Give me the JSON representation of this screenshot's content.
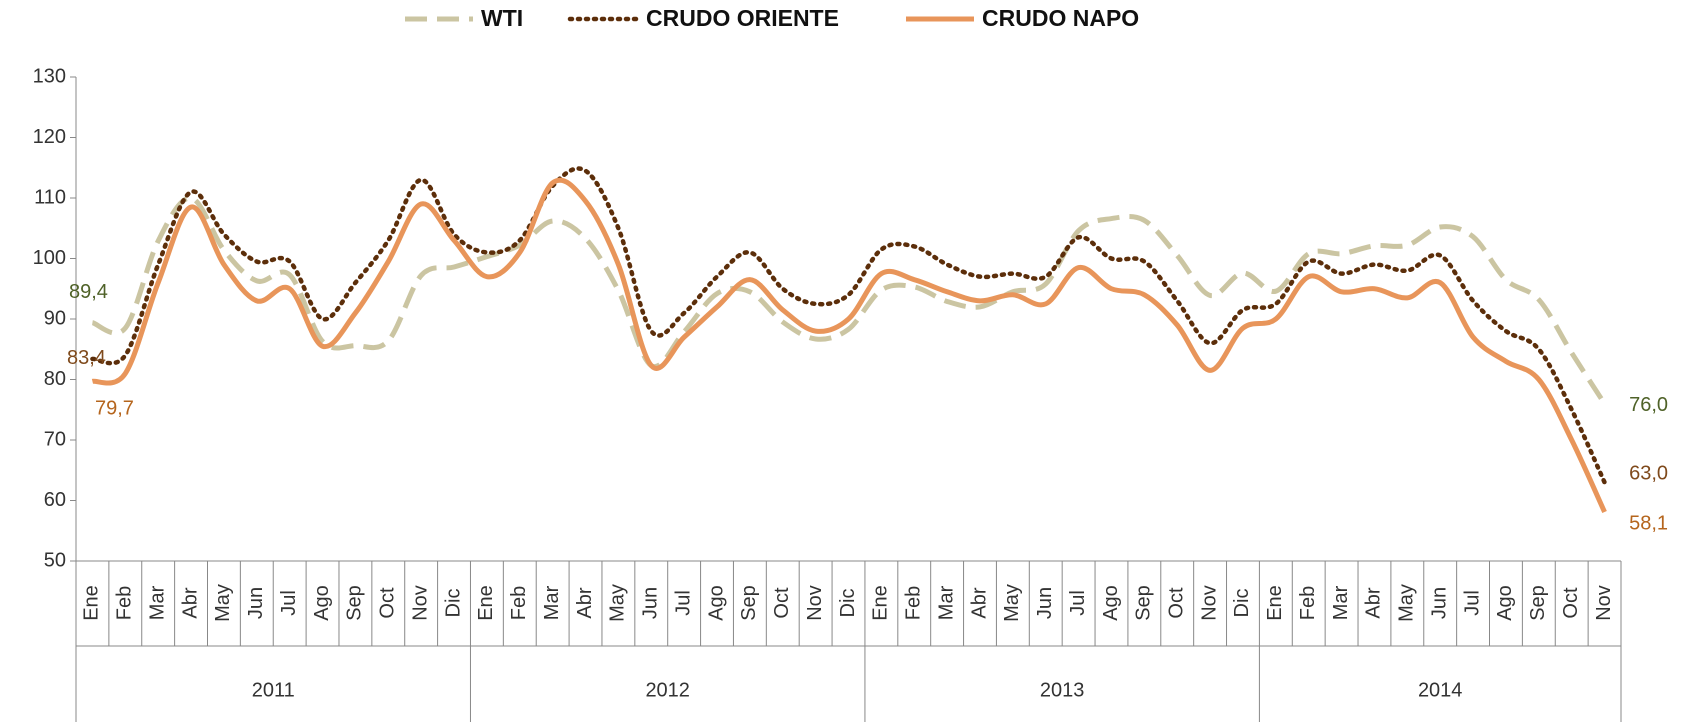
{
  "chart_data": {
    "type": "line",
    "groups": [
      {
        "label": "2011",
        "categories": [
          "Ene",
          "Feb",
          "Mar",
          "Abr",
          "May",
          "Jun",
          "Jul",
          "Ago",
          "Sep",
          "Oct",
          "Nov",
          "Dic"
        ]
      },
      {
        "label": "2012",
        "categories": [
          "Ene",
          "Feb",
          "Mar",
          "Abr",
          "May",
          "Jun",
          "Jul",
          "Ago",
          "Sep",
          "Oct",
          "Nov",
          "Dic"
        ]
      },
      {
        "label": "2013",
        "categories": [
          "Ene",
          "Feb",
          "Mar",
          "Abr",
          "May",
          "Jun",
          "Jul",
          "Ago",
          "Sep",
          "Oct",
          "Nov",
          "Dic"
        ]
      },
      {
        "label": "2014",
        "categories": [
          "Ene",
          "Feb",
          "Mar",
          "Abr",
          "May",
          "Jun",
          "Jul",
          "Ago",
          "Sep",
          "Oct",
          "Nov"
        ]
      }
    ],
    "series": [
      {
        "name": "WTI",
        "color": "#cbc5a2",
        "label_color": "#4f6228",
        "style": "dashed",
        "values": [
          89.4,
          88.5,
          102.9,
          110,
          101.4,
          96.3,
          97.3,
          86.3,
          85.6,
          86.4,
          97.2,
          98.6,
          100.3,
          102.2,
          106.2,
          103.3,
          94.7,
          82.3,
          87.9,
          94.2,
          94.5,
          89.5,
          86.7,
          88.3,
          94.8,
          95.3,
          92.9,
          92.0,
          94.5,
          95.8,
          104.6,
          106.6,
          106.3,
          100.5,
          93.9,
          97.6,
          94.6,
          100.8,
          100.8,
          102.1,
          102.2,
          105.2,
          103.6,
          96.5,
          93.2,
          84.4,
          76.0
        ],
        "value_labels": [
          "89,4",
          null,
          null,
          null,
          null,
          null,
          null,
          null,
          null,
          null,
          null,
          null,
          null,
          null,
          null,
          null,
          null,
          null,
          null,
          null,
          null,
          null,
          null,
          null,
          null,
          null,
          null,
          null,
          null,
          null,
          null,
          null,
          null,
          null,
          null,
          null,
          null,
          null,
          null,
          null,
          null,
          null,
          null,
          null,
          null,
          null,
          "76,0"
        ]
      },
      {
        "name": "CRUDO ORIENTE",
        "color": "#5c2e0a",
        "label_color": "#7f4a1c",
        "style": "dotted",
        "values": [
          83.4,
          84,
          99,
          111,
          104,
          99.5,
          99.5,
          90,
          96,
          103,
          113,
          104,
          101,
          103,
          112,
          114.5,
          105,
          88,
          91,
          97,
          101,
          95,
          92.5,
          94,
          101.5,
          102,
          99,
          97,
          97.5,
          97,
          103.5,
          100,
          99.5,
          93,
          86,
          91.5,
          92.5,
          99.5,
          97.5,
          99,
          98,
          100.5,
          93,
          88,
          85,
          75,
          63.0
        ],
        "value_labels": [
          "83,4",
          null,
          null,
          null,
          null,
          null,
          null,
          null,
          null,
          null,
          null,
          null,
          null,
          null,
          null,
          null,
          null,
          null,
          null,
          null,
          null,
          null,
          null,
          null,
          null,
          null,
          null,
          null,
          null,
          null,
          null,
          null,
          null,
          null,
          null,
          null,
          null,
          null,
          null,
          null,
          null,
          null,
          null,
          null,
          null,
          null,
          "63,0"
        ]
      },
      {
        "name": "CRUDO NAPO",
        "color": "#e8955a",
        "label_color": "#b5651d",
        "style": "solid",
        "values": [
          79.7,
          81,
          96,
          108.5,
          99,
          93,
          95,
          85.5,
          91,
          99.5,
          109,
          103,
          97,
          101,
          112.5,
          109.5,
          99,
          82.3,
          87,
          92,
          96.5,
          91.5,
          88,
          90,
          97.5,
          96.5,
          94.5,
          93,
          94,
          92.5,
          98.5,
          95,
          94,
          89,
          81.5,
          88.5,
          90,
          97,
          94.5,
          95,
          93.5,
          96,
          87,
          83,
          80,
          70,
          58.1
        ],
        "value_labels": [
          "79,7",
          null,
          null,
          null,
          null,
          null,
          null,
          null,
          null,
          null,
          null,
          null,
          null,
          null,
          null,
          null,
          null,
          null,
          null,
          null,
          null,
          null,
          null,
          null,
          null,
          null,
          null,
          null,
          null,
          null,
          null,
          null,
          null,
          null,
          null,
          null,
          null,
          null,
          null,
          null,
          null,
          null,
          null,
          null,
          null,
          null,
          "58,1"
        ]
      }
    ],
    "ylim": [
      50,
      130
    ],
    "yticks": [
      50,
      60,
      70,
      80,
      90,
      100,
      110,
      120,
      130
    ],
    "grid": false,
    "legend": "top"
  }
}
